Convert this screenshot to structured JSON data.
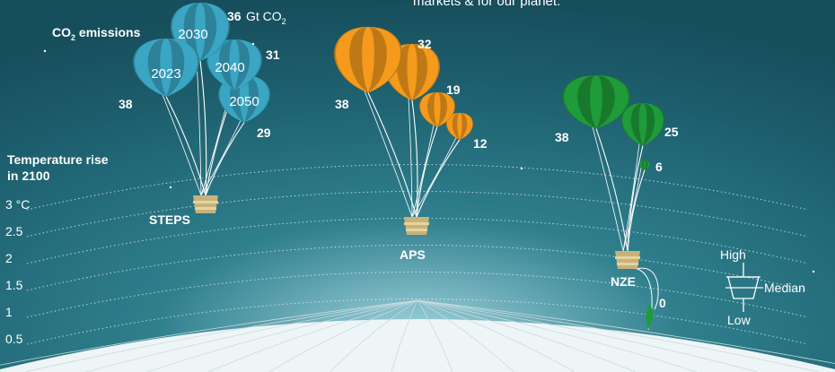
{
  "header_text": "markets & for our planet.",
  "co2_label": "CO",
  "co2_sub": "2",
  "co2_label_suffix": " emissions",
  "unit": {
    "value": "36",
    "text": " Gt CO",
    "sub": "2"
  },
  "temperature": {
    "title_line1": "Temperature rise",
    "title_line2": "in 2100",
    "ticks": [
      "3 °C",
      "2.5",
      "2",
      "1.5",
      "1",
      "0.5"
    ]
  },
  "legend": {
    "high": "High",
    "median": "Median",
    "low": "Low"
  },
  "colors": {
    "STEPS": "#3aa6c4",
    "APS": "#f59a1c",
    "NZE": "#1f9b3a",
    "basket": "#c8b27a"
  },
  "chart_data": {
    "type": "scatter",
    "title": "",
    "xlabel": "",
    "ylabel": "Temperature rise in 2100",
    "yunit": "°C",
    "yticks": [
      0.5,
      1,
      1.5,
      2,
      2.5,
      3
    ],
    "series": [
      {
        "name": "STEPS",
        "temperature_median": 2.4,
        "emissions": [
          {
            "year": "2023",
            "value": 38
          },
          {
            "year": "2030",
            "value": 36
          },
          {
            "year": "2040",
            "value": 31
          },
          {
            "year": "2050",
            "value": 29
          }
        ]
      },
      {
        "name": "APS",
        "temperature_median": 1.7,
        "emissions": [
          {
            "year": "2023",
            "value": 38
          },
          {
            "year": "2030",
            "value": 32
          },
          {
            "year": "2040",
            "value": 19
          },
          {
            "year": "2050",
            "value": 12
          }
        ]
      },
      {
        "name": "NZE",
        "temperature_median": 1.4,
        "emissions": [
          {
            "year": "2023",
            "value": 38
          },
          {
            "year": "2030",
            "value": 25
          },
          {
            "year": "2040",
            "value": 6
          },
          {
            "year": "2050",
            "value": 0
          }
        ]
      }
    ]
  }
}
